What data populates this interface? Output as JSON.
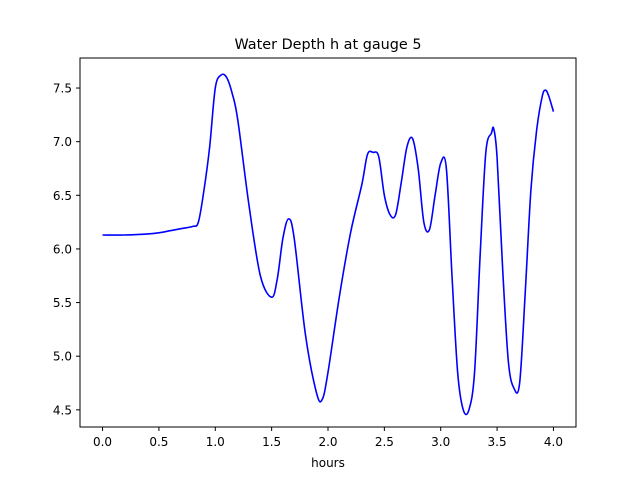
{
  "chart_data": {
    "type": "line",
    "title": "Water Depth h at gauge 5",
    "xlabel": "hours",
    "ylabel": "",
    "xlim": [
      -0.2,
      4.2
    ],
    "ylim": [
      4.34,
      7.78
    ],
    "xticks": [
      0.0,
      0.5,
      1.0,
      1.5,
      2.0,
      2.5,
      3.0,
      3.5,
      4.0
    ],
    "xtick_labels": [
      "0.0",
      "0.5",
      "1.0",
      "1.5",
      "2.0",
      "2.5",
      "3.0",
      "3.5",
      "4.0"
    ],
    "yticks": [
      4.5,
      5.0,
      5.5,
      6.0,
      6.5,
      7.0,
      7.5
    ],
    "ytick_labels": [
      "4.5",
      "5.0",
      "5.5",
      "6.0",
      "6.5",
      "7.0",
      "7.5"
    ],
    "grid": false,
    "series": [
      {
        "color": "#0000ff",
        "x": [
          0.0,
          0.2,
          0.4,
          0.5,
          0.6,
          0.7,
          0.8,
          0.85,
          0.9,
          0.95,
          1.0,
          1.05,
          1.1,
          1.15,
          1.2,
          1.3,
          1.4,
          1.5,
          1.55,
          1.6,
          1.65,
          1.7,
          1.8,
          1.9,
          1.95,
          2.0,
          2.1,
          2.2,
          2.3,
          2.35,
          2.4,
          2.45,
          2.5,
          2.55,
          2.6,
          2.65,
          2.7,
          2.75,
          2.8,
          2.85,
          2.9,
          2.95,
          3.0,
          3.05,
          3.1,
          3.15,
          3.2,
          3.25,
          3.3,
          3.35,
          3.4,
          3.45,
          3.47,
          3.5,
          3.55,
          3.6,
          3.65,
          3.7,
          3.75,
          3.8,
          3.85,
          3.9,
          3.93,
          3.96,
          4.0
        ],
        "y": [
          6.13,
          6.13,
          6.14,
          6.15,
          6.17,
          6.19,
          6.21,
          6.25,
          6.55,
          6.95,
          7.5,
          7.62,
          7.6,
          7.45,
          7.2,
          6.4,
          5.75,
          5.55,
          5.72,
          6.1,
          6.28,
          6.1,
          5.2,
          4.65,
          4.6,
          4.85,
          5.55,
          6.15,
          6.6,
          6.88,
          6.9,
          6.86,
          6.5,
          6.32,
          6.32,
          6.62,
          6.95,
          7.03,
          6.75,
          6.25,
          6.18,
          6.5,
          6.8,
          6.75,
          5.75,
          4.85,
          4.5,
          4.5,
          4.85,
          5.95,
          6.9,
          7.08,
          7.12,
          6.85,
          5.8,
          4.95,
          4.7,
          4.75,
          5.6,
          6.55,
          7.1,
          7.42,
          7.48,
          7.42,
          7.28
        ]
      }
    ]
  }
}
